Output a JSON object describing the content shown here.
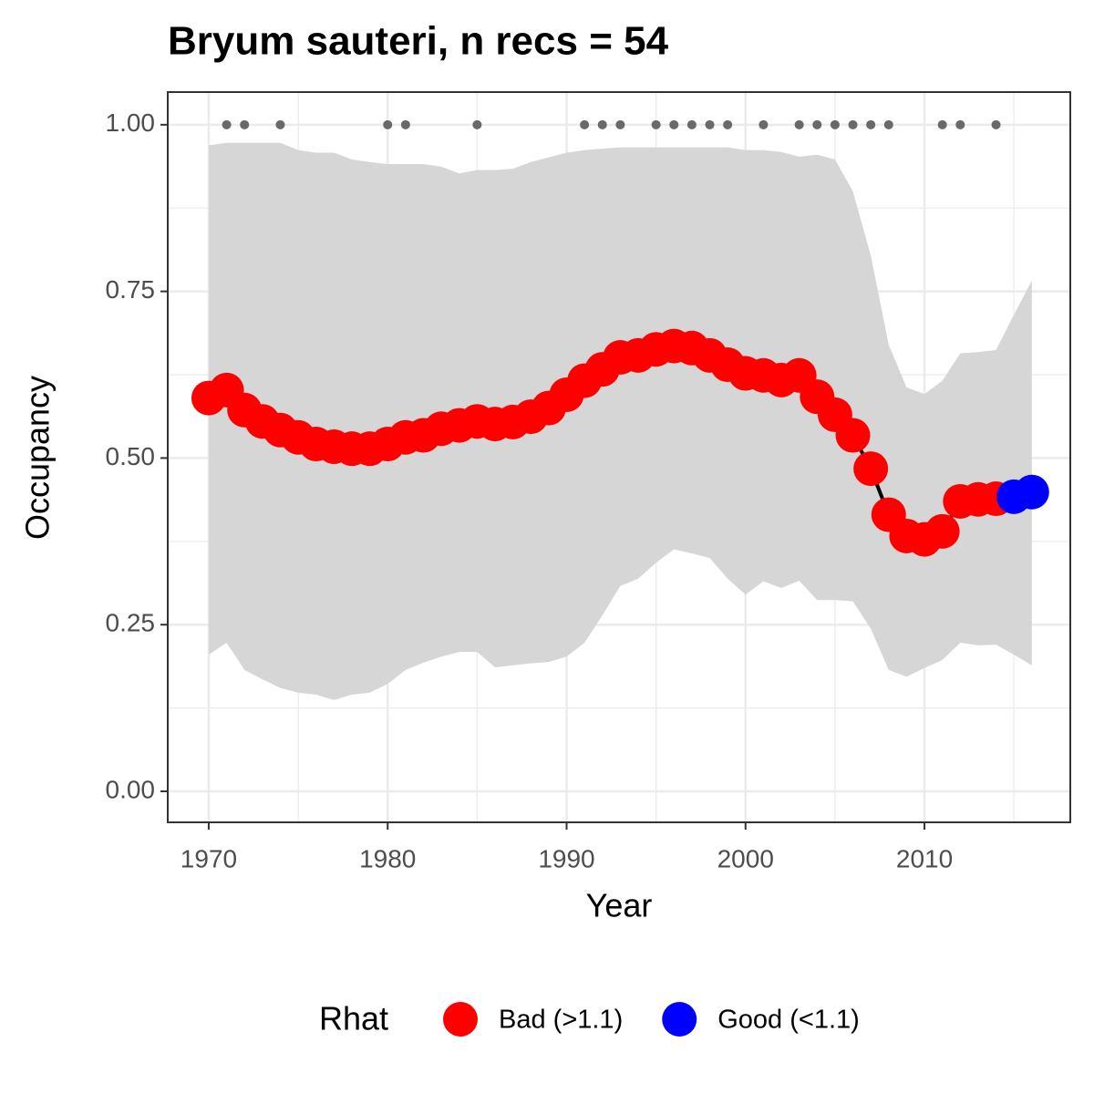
{
  "chart_data": {
    "type": "line",
    "title": "Bryum sauteri, n recs = 54",
    "x_label": "Year",
    "y_label": "Occupancy",
    "x": [
      1970,
      1971,
      1972,
      1973,
      1974,
      1975,
      1976,
      1977,
      1978,
      1979,
      1980,
      1981,
      1982,
      1983,
      1984,
      1985,
      1986,
      1987,
      1988,
      1989,
      1990,
      1991,
      1992,
      1993,
      1994,
      1995,
      1996,
      1997,
      1998,
      1999,
      2000,
      2001,
      2002,
      2003,
      2004,
      2005,
      2006,
      2007,
      2008,
      2009,
      2010,
      2011,
      2012,
      2013,
      2014,
      2015,
      2016
    ],
    "values": [
      0.59,
      0.602,
      0.572,
      0.555,
      0.542,
      0.531,
      0.521,
      0.517,
      0.514,
      0.514,
      0.521,
      0.531,
      0.534,
      0.544,
      0.549,
      0.555,
      0.551,
      0.554,
      0.562,
      0.575,
      0.595,
      0.616,
      0.633,
      0.651,
      0.654,
      0.663,
      0.668,
      0.665,
      0.654,
      0.64,
      0.627,
      0.624,
      0.617,
      0.624,
      0.592,
      0.565,
      0.534,
      0.484,
      0.415,
      0.383,
      0.378,
      0.39,
      0.435,
      0.438,
      0.439,
      0.442,
      0.449
    ],
    "upper": [
      0.969,
      0.973,
      0.973,
      0.973,
      0.973,
      0.962,
      0.958,
      0.958,
      0.948,
      0.944,
      0.941,
      0.941,
      0.941,
      0.937,
      0.927,
      0.932,
      0.932,
      0.934,
      0.944,
      0.951,
      0.958,
      0.962,
      0.964,
      0.966,
      0.966,
      0.966,
      0.966,
      0.966,
      0.966,
      0.966,
      0.962,
      0.962,
      0.959,
      0.952,
      0.955,
      0.948,
      0.9,
      0.804,
      0.67,
      0.606,
      0.596,
      0.616,
      0.657,
      0.659,
      0.662,
      0.715,
      0.766
    ],
    "lower": [
      0.205,
      0.223,
      0.182,
      0.168,
      0.155,
      0.148,
      0.145,
      0.137,
      0.145,
      0.148,
      0.161,
      0.182,
      0.193,
      0.202,
      0.209,
      0.209,
      0.186,
      0.189,
      0.192,
      0.194,
      0.202,
      0.223,
      0.264,
      0.308,
      0.319,
      0.343,
      0.363,
      0.357,
      0.35,
      0.319,
      0.295,
      0.315,
      0.305,
      0.316,
      0.287,
      0.287,
      0.285,
      0.244,
      0.182,
      0.172,
      0.185,
      0.197,
      0.223,
      0.219,
      0.22,
      0.205,
      0.189
    ],
    "band_color": "#d6d6d6",
    "line_color": "#000000",
    "rhat": [
      "Bad (>1.1)",
      "Bad (>1.1)",
      "Bad (>1.1)",
      "Bad (>1.1)",
      "Bad (>1.1)",
      "Bad (>1.1)",
      "Bad (>1.1)",
      "Bad (>1.1)",
      "Bad (>1.1)",
      "Bad (>1.1)",
      "Bad (>1.1)",
      "Bad (>1.1)",
      "Bad (>1.1)",
      "Bad (>1.1)",
      "Bad (>1.1)",
      "Bad (>1.1)",
      "Bad (>1.1)",
      "Bad (>1.1)",
      "Bad (>1.1)",
      "Bad (>1.1)",
      "Bad (>1.1)",
      "Bad (>1.1)",
      "Bad (>1.1)",
      "Bad (>1.1)",
      "Bad (>1.1)",
      "Bad (>1.1)",
      "Bad (>1.1)",
      "Bad (>1.1)",
      "Bad (>1.1)",
      "Bad (>1.1)",
      "Bad (>1.1)",
      "Bad (>1.1)",
      "Bad (>1.1)",
      "Bad (>1.1)",
      "Bad (>1.1)",
      "Bad (>1.1)",
      "Bad (>1.1)",
      "Bad (>1.1)",
      "Bad (>1.1)",
      "Bad (>1.1)",
      "Bad (>1.1)",
      "Bad (>1.1)",
      "Bad (>1.1)",
      "Bad (>1.1)",
      "Bad (>1.1)",
      "Good (<1.1)",
      "Good (<1.1)"
    ],
    "legend": {
      "title": "Rhat",
      "position": "bottom",
      "entries": [
        {
          "name": "Bad (>1.1)",
          "color": "#ff0000"
        },
        {
          "name": "Good (<1.1)",
          "color": "#0000ff"
        }
      ]
    },
    "records": {
      "color": "#696969",
      "x": [
        1971,
        1972,
        1974,
        1980,
        1981,
        1985,
        1991,
        1992,
        1993,
        1995,
        1996,
        1997,
        1998,
        1999,
        2001,
        2003,
        2004,
        2005,
        2006,
        2007,
        2008,
        2011,
        2012,
        2014
      ],
      "values": [
        1,
        1,
        1,
        1,
        1,
        1,
        1,
        1,
        1,
        1,
        1,
        1,
        1,
        1,
        1,
        1,
        1,
        1,
        1,
        1,
        1,
        1,
        1,
        1
      ]
    },
    "xlim": [
      1967.71,
      2018.15
    ],
    "ylim": [
      -0.0465,
      1.049
    ],
    "xticks": [
      1970,
      1980,
      1990,
      2000,
      2010
    ],
    "yticks": [
      {
        "value": 0,
        "label": "0.00"
      },
      {
        "value": 0.25,
        "label": "0.25"
      },
      {
        "value": 0.5,
        "label": "0.50"
      },
      {
        "value": 0.75,
        "label": "0.75"
      },
      {
        "value": 1,
        "label": "1.00"
      }
    ],
    "grid": true
  }
}
